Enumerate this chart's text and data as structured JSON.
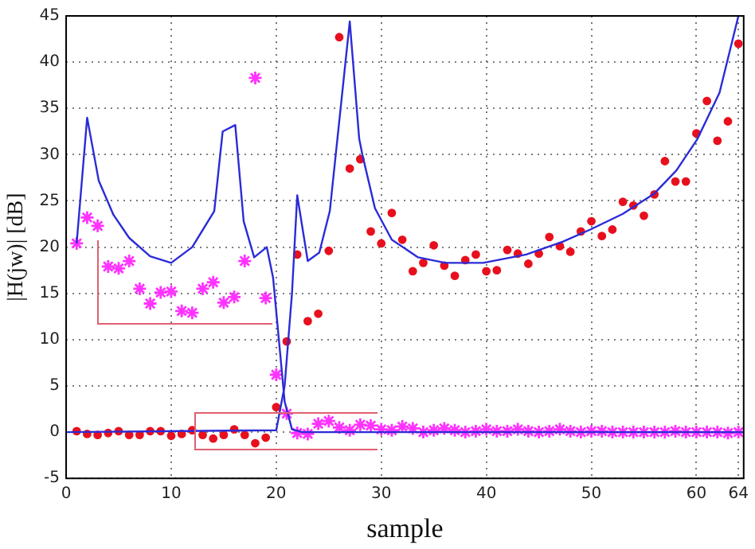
{
  "chart_data": {
    "type": "scatter",
    "xlabel": "sample",
    "ylabel": "|H(jw)| [dB]",
    "xlim": [
      0,
      64.5
    ],
    "xticks": [
      0,
      10,
      20,
      30,
      40,
      50,
      60,
      64
    ],
    "ylim": [
      -5,
      45
    ],
    "yticks": [
      -5,
      0,
      5,
      10,
      15,
      20,
      25,
      30,
      35,
      40,
      45
    ],
    "grid": true,
    "legend": false,
    "series": [
      {
        "type": "line",
        "marker": "none",
        "color": "#2b2bd8",
        "x": [
          1,
          2,
          3.1,
          4.5,
          6,
          8,
          10,
          12,
          14.1,
          14.9,
          16.1,
          16.9,
          17.9,
          19.1,
          19.7,
          20.8,
          21.5,
          22.5,
          64.5
        ],
        "values": [
          20.4,
          34,
          27.2,
          23.5,
          21,
          19,
          18.3,
          20,
          23.9,
          32.5,
          33.2,
          22.8,
          18.9,
          20,
          16.7,
          3.3,
          0.3,
          0,
          0
        ]
      },
      {
        "type": "line",
        "marker": "none",
        "color": "#2b2bd8",
        "x": [
          0,
          20,
          20.8,
          21.5,
          22,
          23,
          24.1,
          25.1,
          27,
          27.9,
          28.2,
          29.4,
          31,
          33.5,
          36.1,
          39.7,
          43.8,
          47.3,
          49.9,
          53,
          56,
          58.1,
          60.1,
          62.2,
          64
        ],
        "values": [
          0,
          0.2,
          5,
          15,
          25.6,
          18.5,
          19.4,
          23.9,
          44.4,
          31.7,
          30,
          24.2,
          20.8,
          18.9,
          18.3,
          18.3,
          19.2,
          20.6,
          21.9,
          23.6,
          25.8,
          28.3,
          31.7,
          36.7,
          45
        ]
      },
      {
        "type": "scatter",
        "marker": "circle",
        "color": "#e8101e",
        "x": [
          1,
          2,
          3,
          4,
          5,
          6,
          7,
          8,
          9,
          10,
          11,
          12,
          13,
          14,
          15,
          16,
          17,
          18,
          19,
          20,
          21,
          22,
          23,
          24,
          25,
          26,
          27,
          28,
          29,
          30,
          31,
          32,
          33,
          34,
          35,
          36,
          37,
          38,
          39,
          40,
          41,
          42,
          43,
          44,
          45,
          46,
          47,
          48,
          49,
          50,
          51,
          52,
          53,
          54,
          55,
          56,
          57,
          58,
          59,
          60,
          61,
          62,
          63,
          64
        ],
        "values": [
          0.1,
          -0.2,
          -0.3,
          -0.1,
          0.1,
          -0.3,
          -0.3,
          0.1,
          0.1,
          -0.4,
          -0.2,
          0.2,
          -0.3,
          -0.7,
          -0.3,
          0.3,
          -0.3,
          -1.2,
          -0.6,
          2.7,
          9.8,
          19.2,
          12,
          12.8,
          19.6,
          42.7,
          28.5,
          29.5,
          21.7,
          20.4,
          23.7,
          20.8,
          17.4,
          18.3,
          20.2,
          18,
          16.9,
          18.6,
          19.2,
          17.4,
          17.5,
          19.7,
          19.3,
          18.2,
          19.3,
          21.1,
          20.1,
          19.5,
          21.7,
          22.8,
          21.2,
          21.9,
          24.9,
          24.5,
          23.4,
          25.7,
          29.3,
          27.1,
          27.1,
          32.3,
          35.8,
          31.5,
          33.6,
          42
        ]
      },
      {
        "type": "scatter",
        "marker": "cross",
        "color": "#ff33ff",
        "x": [
          1,
          2,
          3,
          4,
          5,
          6,
          7,
          8,
          9,
          10,
          11,
          12,
          13,
          14,
          15,
          16,
          17,
          18,
          19,
          20,
          21,
          22,
          23,
          24,
          25,
          26,
          27,
          28,
          29,
          30,
          31,
          32,
          33,
          34,
          35,
          36,
          37,
          38,
          39,
          40,
          41,
          42,
          43,
          44,
          45,
          46,
          47,
          48,
          49,
          50,
          51,
          52,
          53,
          54,
          55,
          56,
          57,
          58,
          59,
          60,
          61,
          62,
          63,
          64
        ],
        "values": [
          20.4,
          23.2,
          22.3,
          17.9,
          17.7,
          18.5,
          15.5,
          13.9,
          15.1,
          15.2,
          13.1,
          12.9,
          15.5,
          16.2,
          14,
          14.6,
          18.5,
          38.3,
          14.5,
          6.2,
          2,
          -0.1,
          -0.2,
          0.9,
          1.2,
          0.5,
          0.2,
          0.8,
          0.7,
          0.3,
          0.2,
          0.6,
          0.4,
          0,
          0.2,
          0.4,
          0.2,
          0,
          0.1,
          0.3,
          0.1,
          0.1,
          0.3,
          0.1,
          0,
          0.1,
          0.3,
          0.1,
          0,
          0.1,
          0.1,
          0,
          0,
          0,
          0,
          0,
          0,
          0.1,
          0,
          0,
          0,
          0,
          -0.1,
          0
        ]
      }
    ]
  }
}
